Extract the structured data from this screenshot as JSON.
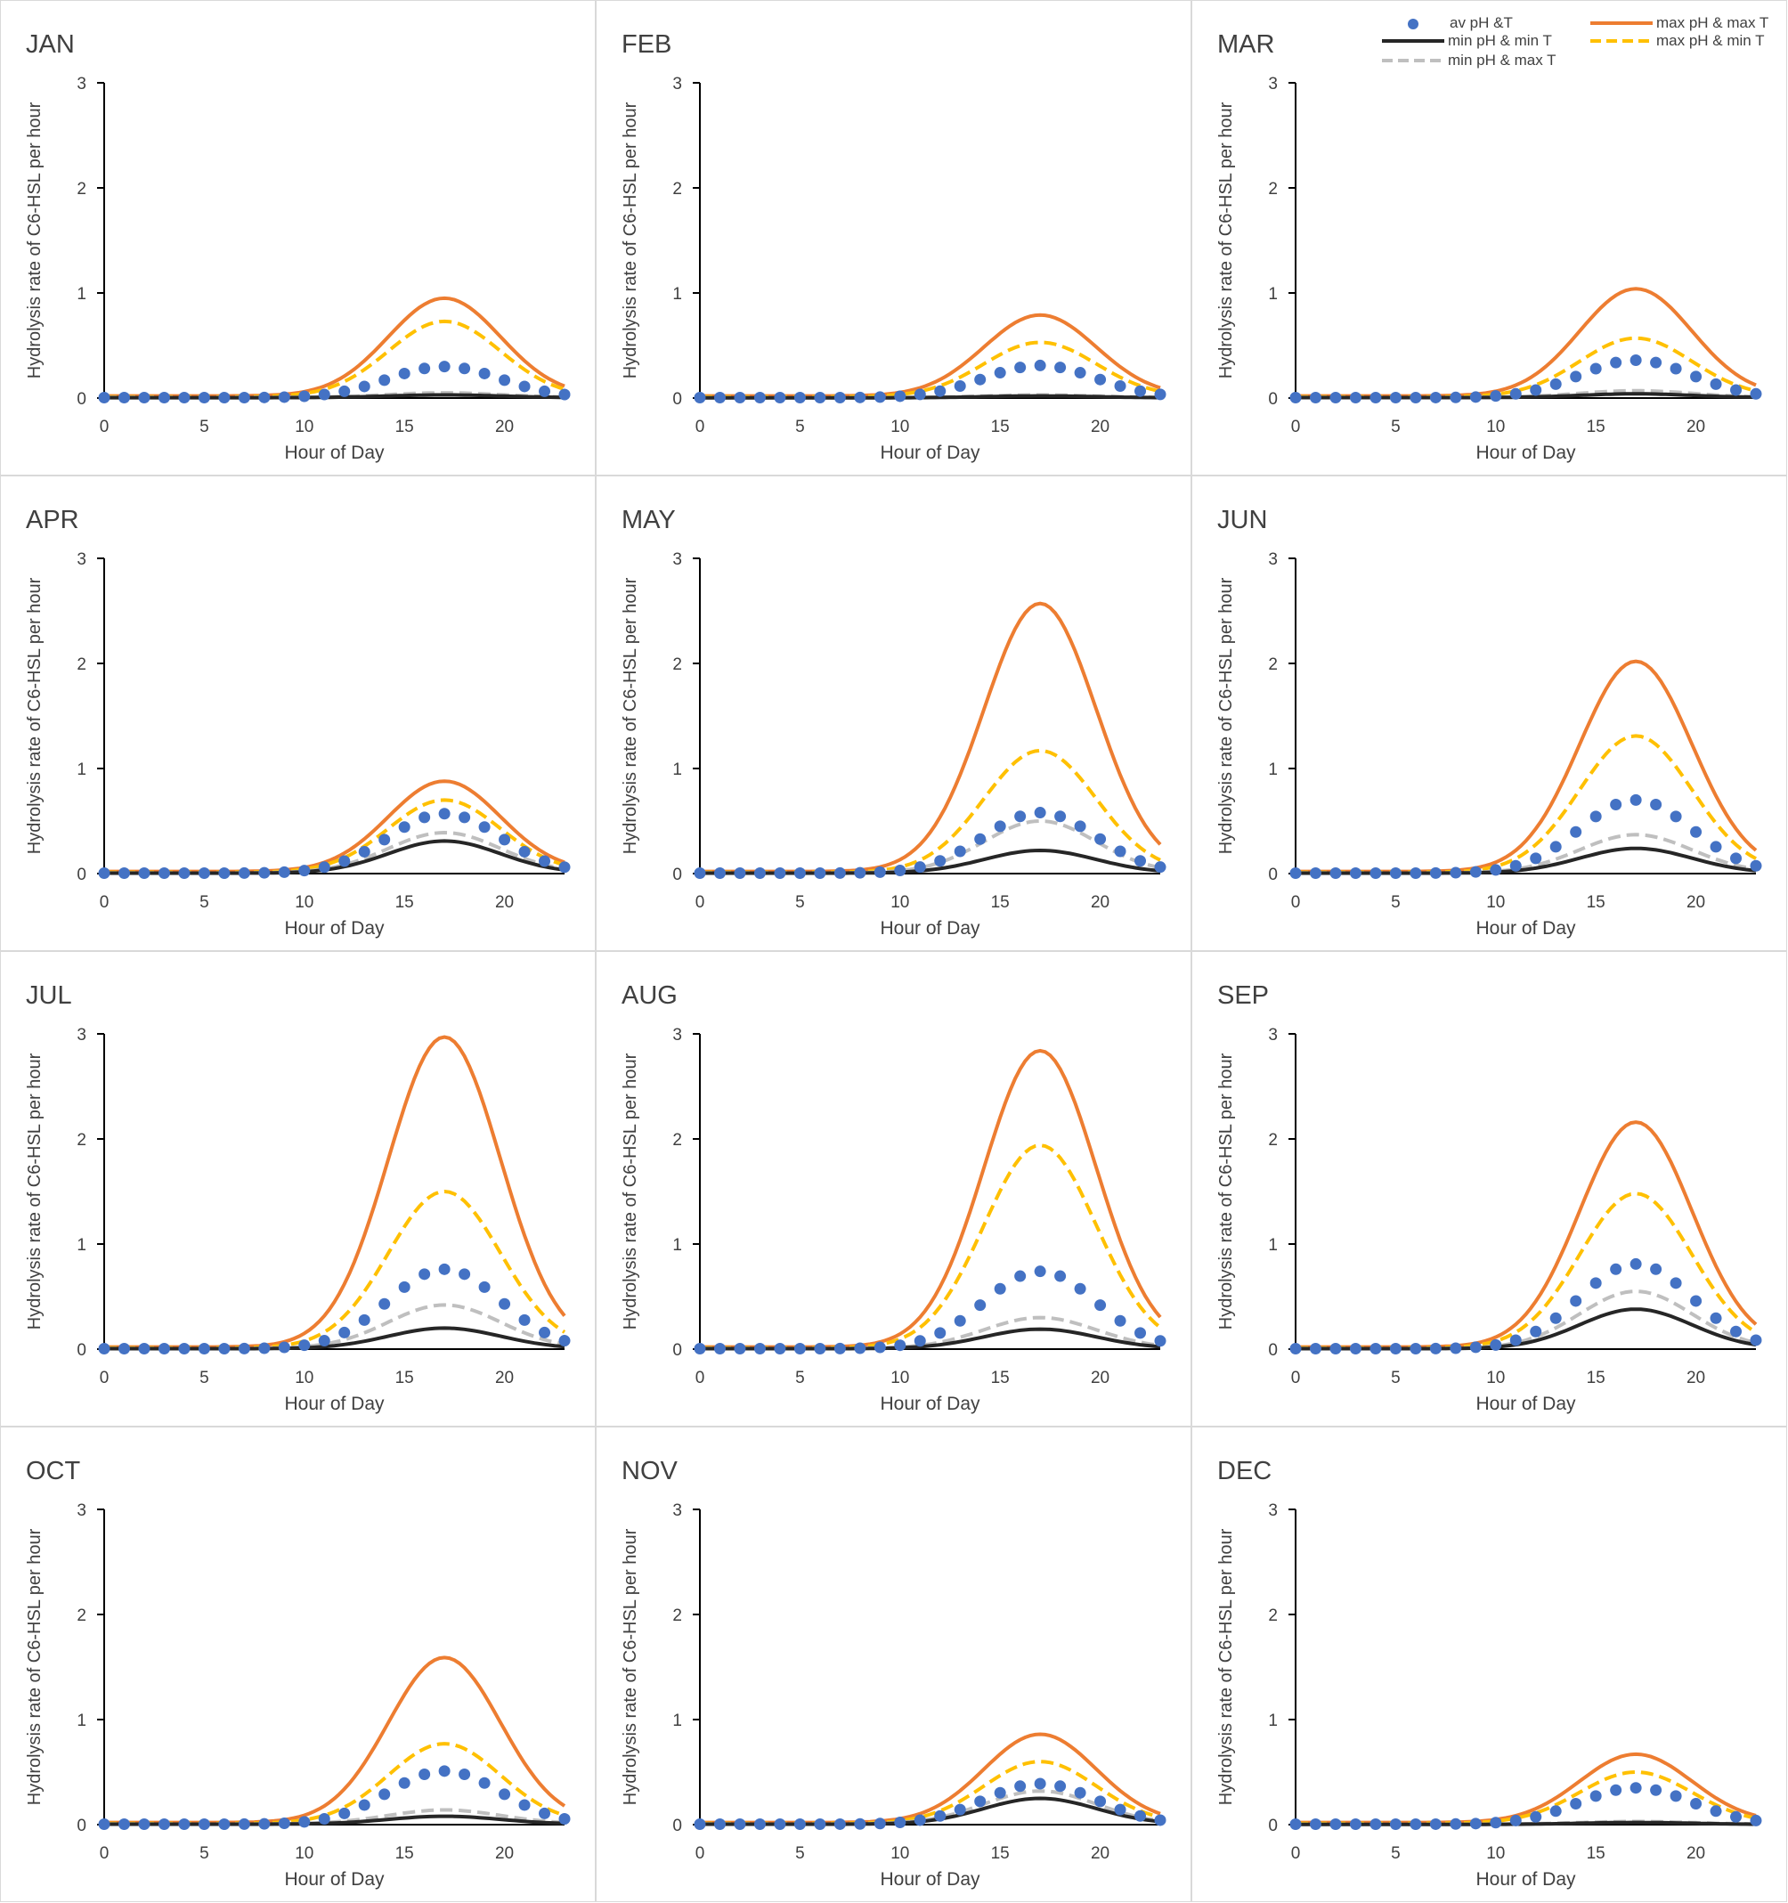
{
  "chart_data": {
    "type": "line",
    "common": {
      "xlabel": "Hour of Day",
      "ylabel": "Hydrolysis rate of C6-HSL per hour",
      "xlim": [
        0,
        23
      ],
      "ylim": [
        0,
        3
      ],
      "xticks": [
        0,
        5,
        10,
        15,
        20
      ],
      "yticks": [
        0,
        1,
        2,
        3
      ],
      "peak_hour": 17,
      "grid": false
    },
    "legend": {
      "placement": "top-right",
      "entries": [
        {
          "key": "av",
          "label": "av pH &T",
          "style": "dots",
          "color": "#4472C4"
        },
        {
          "key": "maxmax",
          "label": "max pH & max T",
          "style": "solid",
          "color": "#ED7D31"
        },
        {
          "key": "minmin",
          "label": "min pH & min T",
          "style": "solid",
          "color": "#262626"
        },
        {
          "key": "maxmin",
          "label": "max pH & min T",
          "style": "dashed",
          "color": "#FFC000"
        },
        {
          "key": "minmax",
          "label": "min pH & max T",
          "style": "dashed",
          "color": "#BFBFBF"
        }
      ]
    },
    "panels": [
      {
        "title": "JAN",
        "peaks": {
          "maxmax": 0.95,
          "maxmin": 0.73,
          "av": 0.3,
          "minmax": 0.05,
          "minmin": 0.03
        }
      },
      {
        "title": "FEB",
        "peaks": {
          "maxmax": 0.79,
          "maxmin": 0.53,
          "av": 0.31,
          "minmax": 0.03,
          "minmin": 0.02
        }
      },
      {
        "title": "MAR",
        "peaks": {
          "maxmax": 1.04,
          "maxmin": 0.57,
          "av": 0.36,
          "minmax": 0.07,
          "minmin": 0.04
        }
      },
      {
        "title": "APR",
        "peaks": {
          "maxmax": 0.88,
          "maxmin": 0.7,
          "av": 0.57,
          "minmax": 0.39,
          "minmin": 0.31
        }
      },
      {
        "title": "MAY",
        "peaks": {
          "maxmax": 2.57,
          "maxmin": 1.17,
          "av": 0.58,
          "minmax": 0.5,
          "minmin": 0.22
        }
      },
      {
        "title": "JUN",
        "peaks": {
          "maxmax": 2.02,
          "maxmin": 1.31,
          "av": 0.7,
          "minmax": 0.37,
          "minmin": 0.24
        }
      },
      {
        "title": "JUL",
        "peaks": {
          "maxmax": 2.97,
          "maxmin": 1.5,
          "av": 0.76,
          "minmax": 0.42,
          "minmin": 0.2
        }
      },
      {
        "title": "AUG",
        "peaks": {
          "maxmax": 2.84,
          "maxmin": 1.94,
          "av": 0.74,
          "minmax": 0.3,
          "minmin": 0.19
        }
      },
      {
        "title": "SEP",
        "peaks": {
          "maxmax": 2.16,
          "maxmin": 1.48,
          "av": 0.81,
          "minmax": 0.55,
          "minmin": 0.38
        }
      },
      {
        "title": "OCT",
        "peaks": {
          "maxmax": 1.59,
          "maxmin": 0.77,
          "av": 0.51,
          "minmax": 0.14,
          "minmin": 0.08
        }
      },
      {
        "title": "NOV",
        "peaks": {
          "maxmax": 0.86,
          "maxmin": 0.6,
          "av": 0.39,
          "minmax": 0.32,
          "minmin": 0.25
        }
      },
      {
        "title": "DEC",
        "peaks": {
          "maxmax": 0.67,
          "maxmin": 0.5,
          "av": 0.35,
          "minmax": 0.03,
          "minmin": 0.02
        }
      }
    ]
  }
}
